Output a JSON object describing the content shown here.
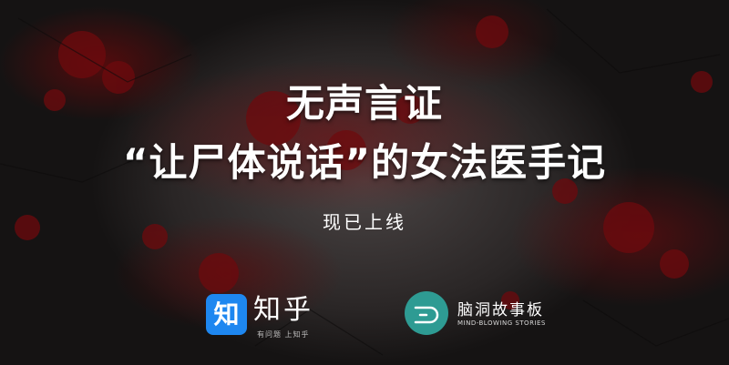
{
  "title": {
    "line1": "无声言证",
    "line2": "“让尸体说话”的女法医手记"
  },
  "subtitle": "现已上线",
  "zhihu": {
    "badge": "知",
    "name": "知乎",
    "slogan": "有问题 上知乎",
    "color": "#1e87f0"
  },
  "naodong": {
    "name": "脑洞故事板",
    "english": "MIND-BLOWING STORIES",
    "color": "#2e9b93",
    "icon": "naodong-logo-icon"
  },
  "colors": {
    "background": "#2a2626",
    "blood": "#7a0a0e",
    "text": "#ffffff"
  }
}
